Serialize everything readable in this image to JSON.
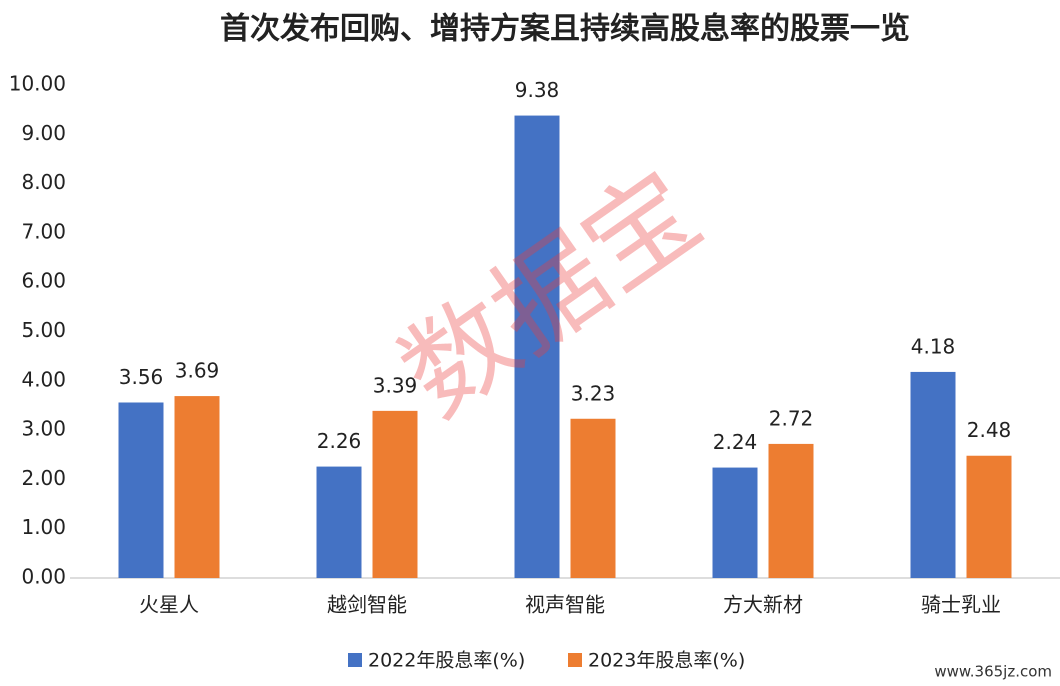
{
  "chart_data": {
    "type": "bar",
    "title": "首次发布回购、增持方案且持续高股息率的股票一览",
    "categories": [
      "火星人",
      "越剑智能",
      "视声智能",
      "方大新材",
      "骑士乳业"
    ],
    "series": [
      {
        "name": "2022年股息率(%)",
        "color": "#4472c4",
        "values": [
          3.56,
          2.26,
          9.38,
          2.24,
          4.18
        ]
      },
      {
        "name": "2023年股息率(%)",
        "color": "#ed7d31",
        "values": [
          3.69,
          3.39,
          3.23,
          2.72,
          2.48
        ]
      }
    ],
    "ylim": [
      0,
      10
    ],
    "yticks": [
      {
        "value": 0,
        "label": "0.00"
      },
      {
        "value": 1,
        "label": "1.00"
      },
      {
        "value": 2,
        "label": "2.00"
      },
      {
        "value": 3,
        "label": "3.00"
      },
      {
        "value": 4,
        "label": "4.00"
      },
      {
        "value": 5,
        "label": "5.00"
      },
      {
        "value": 6,
        "label": "6.00"
      },
      {
        "value": 7,
        "label": "7.00"
      },
      {
        "value": 8,
        "label": "8.00"
      },
      {
        "value": 9,
        "label": "9.00"
      },
      {
        "value": 10,
        "label": "10.00"
      }
    ],
    "grid": false,
    "legend": "bottom",
    "watermark": "数据宝",
    "source": "www.365jz.com"
  }
}
